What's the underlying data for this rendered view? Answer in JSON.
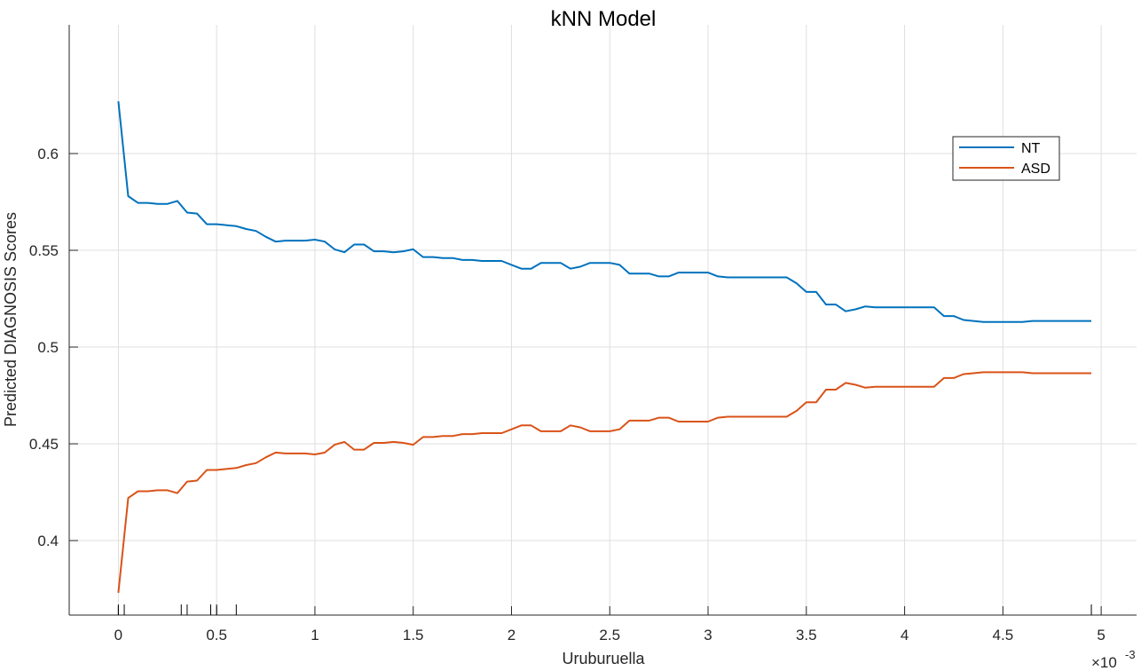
{
  "chart_data": {
    "type": "line",
    "title": "kNN Model",
    "xlabel": "Uruburuella",
    "ylabel": "Predicted DIAGNOSIS Scores",
    "x_exponent_label": "×10",
    "x_exponent_power": "-3",
    "xlim": [
      -0.25,
      5.18
    ],
    "ylim": [
      0.3615,
      0.6665
    ],
    "xticks": [
      0,
      0.5,
      1,
      1.5,
      2,
      2.5,
      3,
      3.5,
      4,
      4.5,
      5
    ],
    "xtick_labels": [
      "0",
      "0.5",
      "1",
      "1.5",
      "2",
      "2.5",
      "3",
      "3.5",
      "4",
      "4.5",
      "5"
    ],
    "yticks": [
      0.4,
      0.45,
      0.5,
      0.55,
      0.6
    ],
    "ytick_labels": [
      "0.4",
      "0.45",
      "0.5",
      "0.55",
      "0.6"
    ],
    "grid": true,
    "legend_position": "top-right",
    "rug": [
      0,
      0.03,
      0.32,
      0.35,
      0.47,
      0.5,
      0.6,
      4.95
    ],
    "series": [
      {
        "name": "NT",
        "color": "#0072BD",
        "x": [
          0,
          0.05,
          0.1,
          0.15,
          0.2,
          0.25,
          0.3,
          0.35,
          0.4,
          0.45,
          0.5,
          0.55,
          0.6,
          0.65,
          0.7,
          0.75,
          0.8,
          0.85,
          0.9,
          0.95,
          1.0,
          1.05,
          1.1,
          1.15,
          1.2,
          1.25,
          1.3,
          1.35,
          1.4,
          1.45,
          1.5,
          1.55,
          1.6,
          1.65,
          1.7,
          1.75,
          1.8,
          1.85,
          1.9,
          1.95,
          2.0,
          2.05,
          2.1,
          2.15,
          2.2,
          2.25,
          2.3,
          2.35,
          2.4,
          2.45,
          2.5,
          2.55,
          2.6,
          2.65,
          2.7,
          2.75,
          2.8,
          2.85,
          2.9,
          2.95,
          3.0,
          3.05,
          3.1,
          3.15,
          3.2,
          3.25,
          3.3,
          3.35,
          3.4,
          3.45,
          3.5,
          3.55,
          3.6,
          3.65,
          3.7,
          3.75,
          3.8,
          3.85,
          3.9,
          3.95,
          4.0,
          4.05,
          4.1,
          4.15,
          4.2,
          4.25,
          4.3,
          4.35,
          4.4,
          4.45,
          4.5,
          4.55,
          4.6,
          4.65,
          4.7,
          4.75,
          4.8,
          4.85,
          4.9,
          4.95
        ],
        "y": [
          0.627,
          0.578,
          0.5745,
          0.5745,
          0.574,
          0.574,
          0.5755,
          0.5695,
          0.569,
          0.5635,
          0.5635,
          0.563,
          0.5625,
          0.561,
          0.56,
          0.557,
          0.5545,
          0.555,
          0.555,
          0.555,
          0.5555,
          0.5545,
          0.5505,
          0.549,
          0.553,
          0.553,
          0.5495,
          0.5495,
          0.549,
          0.5495,
          0.5505,
          0.5465,
          0.5465,
          0.546,
          0.546,
          0.545,
          0.545,
          0.5445,
          0.5445,
          0.5445,
          0.5425,
          0.5405,
          0.5405,
          0.5435,
          0.5435,
          0.5435,
          0.5405,
          0.5415,
          0.5435,
          0.5435,
          0.5435,
          0.5425,
          0.538,
          0.538,
          0.538,
          0.5365,
          0.5365,
          0.5385,
          0.5385,
          0.5385,
          0.5385,
          0.5365,
          0.536,
          0.536,
          0.536,
          0.536,
          0.536,
          0.536,
          0.536,
          0.533,
          0.5285,
          0.5285,
          0.522,
          0.522,
          0.5185,
          0.5195,
          0.521,
          0.5205,
          0.5205,
          0.5205,
          0.5205,
          0.5205,
          0.5205,
          0.5205,
          0.516,
          0.516,
          0.514,
          0.5135,
          0.513,
          0.513,
          0.513,
          0.513,
          0.513,
          0.5135,
          0.5135,
          0.5135,
          0.5135,
          0.5135,
          0.5135,
          0.5135
        ]
      },
      {
        "name": "ASD",
        "color": "#D95319",
        "x": [
          0,
          0.05,
          0.1,
          0.15,
          0.2,
          0.25,
          0.3,
          0.35,
          0.4,
          0.45,
          0.5,
          0.55,
          0.6,
          0.65,
          0.7,
          0.75,
          0.8,
          0.85,
          0.9,
          0.95,
          1.0,
          1.05,
          1.1,
          1.15,
          1.2,
          1.25,
          1.3,
          1.35,
          1.4,
          1.45,
          1.5,
          1.55,
          1.6,
          1.65,
          1.7,
          1.75,
          1.8,
          1.85,
          1.9,
          1.95,
          2.0,
          2.05,
          2.1,
          2.15,
          2.2,
          2.25,
          2.3,
          2.35,
          2.4,
          2.45,
          2.5,
          2.55,
          2.6,
          2.65,
          2.7,
          2.75,
          2.8,
          2.85,
          2.9,
          2.95,
          3.0,
          3.05,
          3.1,
          3.15,
          3.2,
          3.25,
          3.3,
          3.35,
          3.4,
          3.45,
          3.5,
          3.55,
          3.6,
          3.65,
          3.7,
          3.75,
          3.8,
          3.85,
          3.9,
          3.95,
          4.0,
          4.05,
          4.1,
          4.15,
          4.2,
          4.25,
          4.3,
          4.35,
          4.4,
          4.45,
          4.5,
          4.55,
          4.6,
          4.65,
          4.7,
          4.75,
          4.8,
          4.85,
          4.9,
          4.95
        ],
        "y": [
          0.373,
          0.422,
          0.4255,
          0.4255,
          0.426,
          0.426,
          0.4245,
          0.4305,
          0.431,
          0.4365,
          0.4365,
          0.437,
          0.4375,
          0.439,
          0.44,
          0.443,
          0.4455,
          0.445,
          0.445,
          0.445,
          0.4445,
          0.4455,
          0.4495,
          0.451,
          0.447,
          0.447,
          0.4505,
          0.4505,
          0.451,
          0.4505,
          0.4495,
          0.4535,
          0.4535,
          0.454,
          0.454,
          0.455,
          0.455,
          0.4555,
          0.4555,
          0.4555,
          0.4575,
          0.4595,
          0.4595,
          0.4565,
          0.4565,
          0.4565,
          0.4595,
          0.4585,
          0.4565,
          0.4565,
          0.4565,
          0.4575,
          0.462,
          0.462,
          0.462,
          0.4635,
          0.4635,
          0.4615,
          0.4615,
          0.4615,
          0.4615,
          0.4635,
          0.464,
          0.464,
          0.464,
          0.464,
          0.464,
          0.464,
          0.464,
          0.467,
          0.4715,
          0.4715,
          0.478,
          0.478,
          0.4815,
          0.4805,
          0.479,
          0.4795,
          0.4795,
          0.4795,
          0.4795,
          0.4795,
          0.4795,
          0.4795,
          0.484,
          0.484,
          0.486,
          0.4865,
          0.487,
          0.487,
          0.487,
          0.487,
          0.487,
          0.4865,
          0.4865,
          0.4865,
          0.4865,
          0.4865,
          0.4865,
          0.4865
        ]
      }
    ]
  }
}
